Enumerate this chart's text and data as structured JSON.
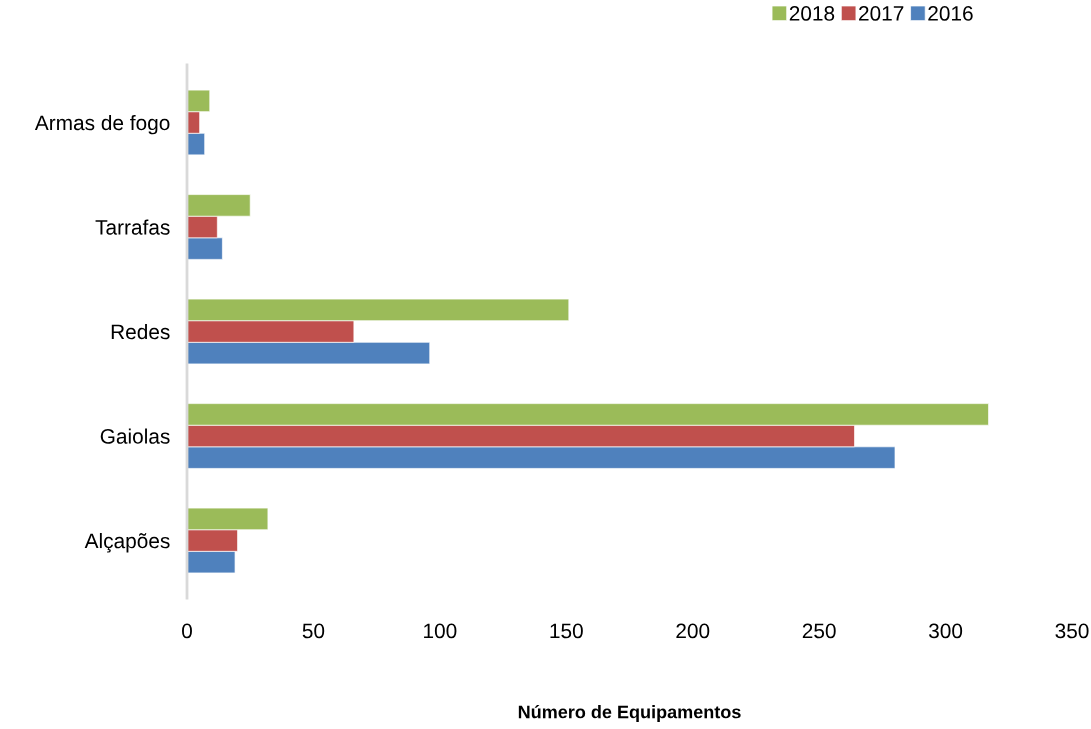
{
  "chart_data": {
    "type": "bar",
    "orientation": "horizontal",
    "xlabel": "Número de Equipamentos",
    "categories": [
      "Armas de fogo",
      "Tarrafas",
      "Redes",
      "Gaiolas",
      "Alçapões"
    ],
    "series": [
      {
        "name": "2016",
        "color": "#4f81bd",
        "values": [
          7,
          14,
          96,
          280,
          19
        ]
      },
      {
        "name": "2017",
        "color": "#c0504d",
        "values": [
          5,
          12,
          66,
          264,
          20
        ]
      },
      {
        "name": "2018",
        "color": "#9bbb59",
        "values": [
          9,
          25,
          151,
          317,
          32
        ]
      }
    ],
    "xlim": [
      0,
      350
    ],
    "xticks": [
      0,
      50,
      100,
      150,
      200,
      250,
      300,
      350
    ],
    "grid": false,
    "legend": "top right"
  }
}
